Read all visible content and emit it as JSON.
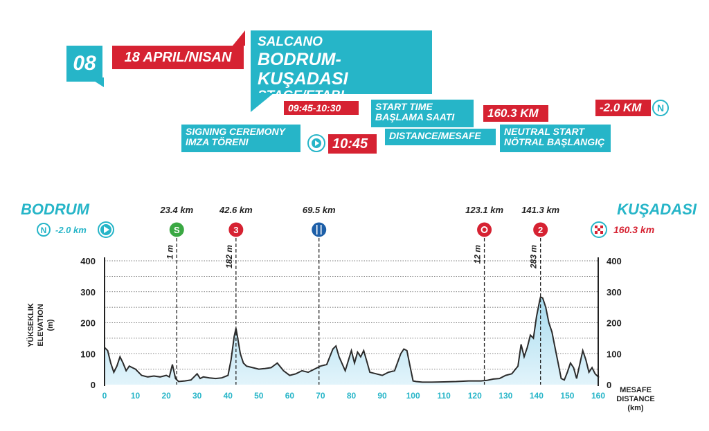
{
  "header": {
    "stage_number": "08",
    "date": "18 APRIL/NISAN",
    "sponsor": "SALCANO",
    "route": "BODRUM-KUŞADASI",
    "stage_label": "STAGE/ETABI",
    "signing_time": "09:45-10:30",
    "signing_label_1": "SIGNING CEREMONY",
    "signing_label_2": "IMZA TÖRENI",
    "start_time": "10:45",
    "start_label_1": "START TIME",
    "start_label_2": "BAŞLAMA SAATI",
    "distance": "160.3 KM",
    "distance_label": "DISTANCE/MESAFE",
    "neutral_distance": "-2.0 KM",
    "neutral_label_1": "NEUTRAL START",
    "neutral_label_2": "NÖTRAL BAŞLANGIÇ",
    "neutral_icon": "N"
  },
  "profile": {
    "start_city": "BODRUM",
    "end_city": "KUŞADASI",
    "neutral_km": "-2.0 km",
    "neutral_icon": "N",
    "finish_km": "160.3 km",
    "y_axis_label_1": "YÜKSEKLIK",
    "y_axis_label_2": "ELEVATION",
    "y_axis_label_3": "(m)",
    "x_axis_label_1": "MESAFE",
    "x_axis_label_2": "DISTANCE",
    "x_axis_label_3": "(km)"
  },
  "colors": {
    "teal": "#26b5c8",
    "red": "#d62232",
    "green": "#3aa843",
    "blue": "#1d5fa8",
    "profile_fill_top": "#a9dcef",
    "profile_fill_bottom": "#e2f4fb"
  },
  "chart_data": {
    "type": "area",
    "xlim": [
      0,
      160
    ],
    "ylim": [
      0,
      400
    ],
    "x_ticks": [
      0,
      10,
      20,
      30,
      40,
      50,
      60,
      70,
      80,
      90,
      100,
      110,
      120,
      130,
      140,
      150,
      160
    ],
    "y_ticks": [
      0,
      100,
      200,
      300,
      400
    ],
    "grid": true,
    "x": [
      0,
      1,
      2,
      3,
      4,
      5,
      6,
      7,
      8,
      9,
      10,
      12,
      14,
      16,
      18,
      20,
      21,
      22,
      23,
      24,
      26,
      28,
      30,
      31,
      32,
      34,
      36,
      38,
      40,
      41,
      42,
      42.6,
      43,
      44,
      45,
      46,
      48,
      50,
      52,
      54,
      56,
      58,
      60,
      62,
      64,
      66,
      68,
      70,
      72,
      73,
      74,
      75,
      76,
      78,
      80,
      81,
      82,
      83,
      84,
      85,
      86,
      88,
      90,
      92,
      94,
      96,
      97,
      98,
      99,
      100,
      101,
      103,
      106,
      110,
      114,
      118,
      122,
      124,
      126,
      128,
      130,
      132,
      134,
      135,
      136,
      137,
      138,
      139,
      140,
      141,
      141.3,
      142,
      143,
      144,
      145,
      146,
      147,
      148,
      149,
      150,
      151,
      152,
      153,
      154,
      155,
      156,
      157,
      158,
      159,
      160,
      160.3
    ],
    "y": [
      120,
      110,
      70,
      40,
      60,
      90,
      70,
      45,
      60,
      55,
      50,
      30,
      25,
      28,
      25,
      30,
      25,
      65,
      20,
      10,
      12,
      15,
      35,
      20,
      25,
      22,
      20,
      22,
      30,
      80,
      155,
      182,
      160,
      100,
      70,
      60,
      55,
      50,
      52,
      55,
      70,
      45,
      30,
      35,
      45,
      40,
      50,
      60,
      65,
      90,
      115,
      125,
      90,
      45,
      110,
      70,
      105,
      90,
      110,
      75,
      40,
      35,
      30,
      40,
      45,
      100,
      115,
      110,
      60,
      12,
      10,
      8,
      8,
      9,
      10,
      12,
      12,
      14,
      18,
      20,
      30,
      35,
      60,
      130,
      90,
      120,
      160,
      150,
      220,
      270,
      283,
      280,
      250,
      200,
      170,
      120,
      70,
      20,
      15,
      40,
      70,
      55,
      20,
      65,
      110,
      80,
      40,
      55,
      35,
      25,
      25
    ],
    "waypoints": [
      {
        "km_label": "23.4 km",
        "km": 23.4,
        "elevation_label": "1 m",
        "icon": "S",
        "icon_name": "sprint-icon",
        "color": "#3aa843"
      },
      {
        "km_label": "42.6 km",
        "km": 42.6,
        "elevation_label": "182 m",
        "icon": "3",
        "icon_name": "category-3-climb-icon",
        "color": "#d62232"
      },
      {
        "km_label": "69.5 km",
        "km": 69.5,
        "elevation_label": "",
        "icon": "food",
        "icon_name": "feed-zone-icon",
        "color": "#1d5fa8"
      },
      {
        "km_label": "123.1 km",
        "km": 123.1,
        "elevation_label": "12 m",
        "icon": "bonus",
        "icon_name": "bonus-sprint-icon",
        "color": "#d62232"
      },
      {
        "km_label": "141.3 km",
        "km": 141.3,
        "elevation_label": "283 m",
        "icon": "2",
        "icon_name": "category-2-climb-icon",
        "color": "#d62232"
      }
    ]
  }
}
